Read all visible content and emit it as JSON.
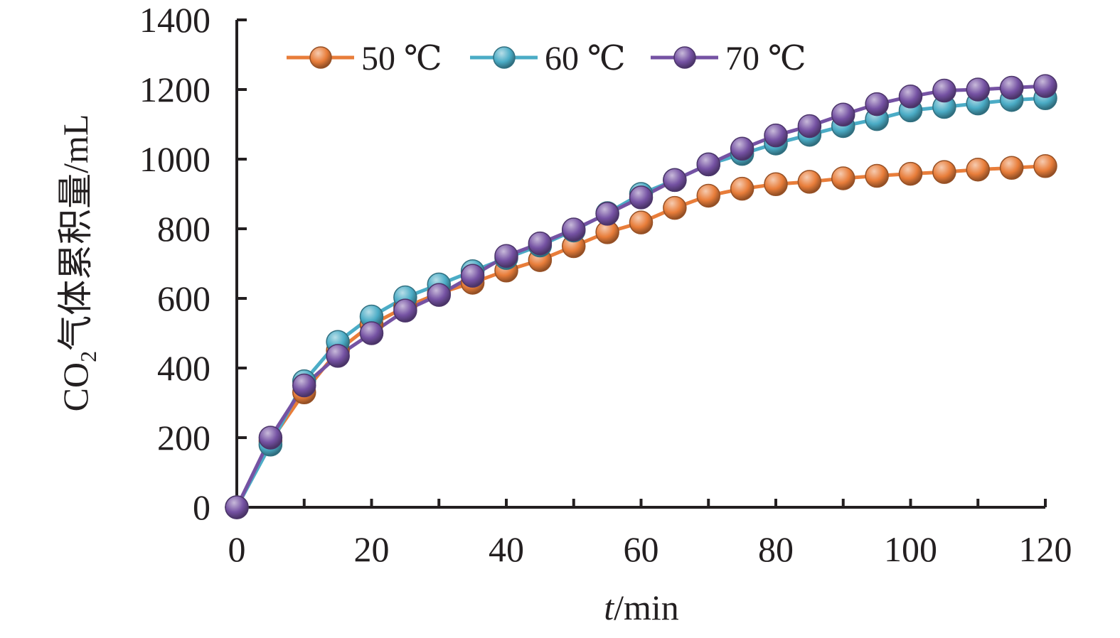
{
  "chart_data": {
    "type": "line",
    "xlabel": {
      "italic": "t",
      "rest": "/min"
    },
    "ylabel": {
      "prefix": "CO",
      "sub": "2",
      "suffix": "气体累积量/mL"
    },
    "xlim": [
      0,
      120
    ],
    "ylim": [
      0,
      1400
    ],
    "x_ticks": [
      "0",
      "20",
      "40",
      "60",
      "80",
      "100",
      "120"
    ],
    "y_ticks": [
      "0",
      "200",
      "400",
      "600",
      "800",
      "1000",
      "1200",
      "1400"
    ],
    "grid": false,
    "legend_placement": "top",
    "x": [
      0,
      5,
      10,
      15,
      20,
      25,
      30,
      35,
      40,
      45,
      50,
      55,
      60,
      65,
      70,
      75,
      80,
      85,
      90,
      95,
      100,
      105,
      110,
      115,
      120
    ],
    "series": [
      {
        "name": "50 ℃",
        "color": "#e87d3a",
        "values": [
          0,
          190,
          330,
          450,
          525,
          575,
          615,
          645,
          680,
          710,
          750,
          790,
          818,
          860,
          895,
          915,
          928,
          935,
          945,
          952,
          958,
          963,
          970,
          975,
          980
        ]
      },
      {
        "name": "60 ℃",
        "color": "#4bacc6",
        "values": [
          0,
          180,
          362,
          475,
          548,
          603,
          640,
          678,
          716,
          752,
          795,
          845,
          900,
          940,
          985,
          1015,
          1045,
          1070,
          1095,
          1115,
          1140,
          1150,
          1160,
          1170,
          1175
        ]
      },
      {
        "name": "70 ℃",
        "color": "#7552a3",
        "values": [
          0,
          200,
          350,
          435,
          500,
          565,
          610,
          665,
          722,
          758,
          798,
          843,
          890,
          940,
          985,
          1030,
          1068,
          1095,
          1128,
          1158,
          1180,
          1197,
          1200,
          1205,
          1210
        ]
      }
    ]
  }
}
